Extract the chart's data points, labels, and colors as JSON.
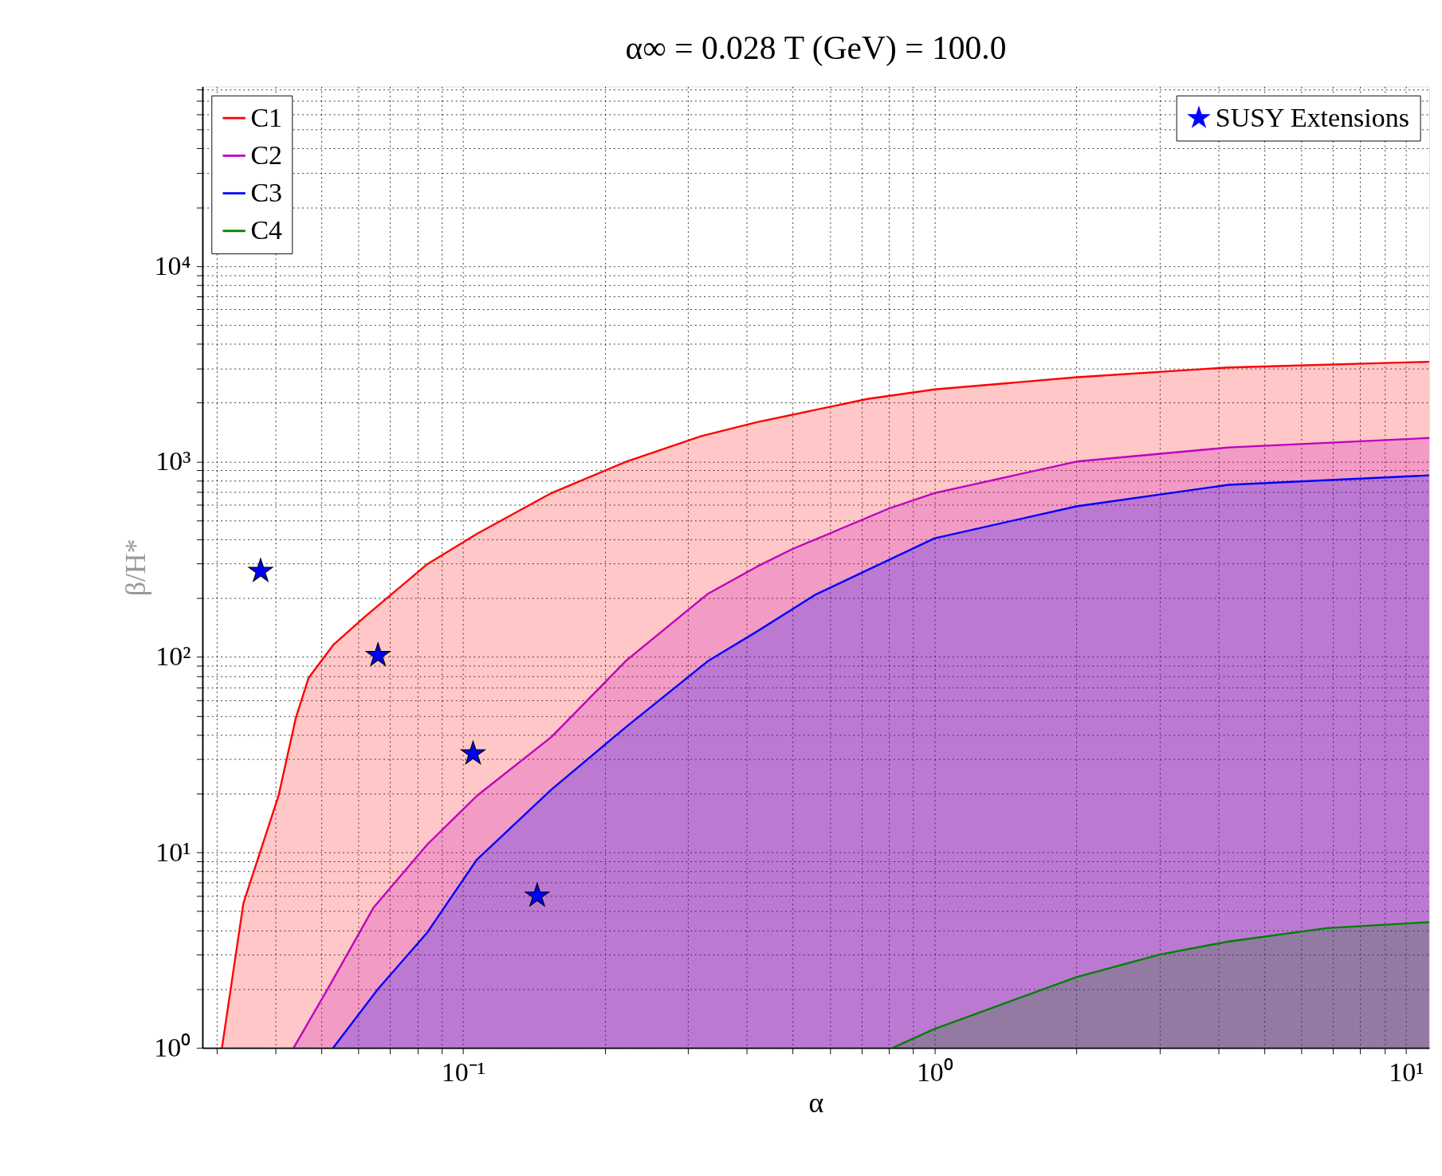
{
  "chart_data": {
    "type": "area",
    "title": "α∞ = 0.028  T (GeV) = 100.0",
    "xlabel": "α",
    "ylabel": "β/H*",
    "log": "xy",
    "grid": true,
    "legend": "top left",
    "xlim": [
      0.028,
      11.2
    ],
    "ylim": [
      1,
      83000
    ],
    "xticks": [
      {
        "value": 0.03,
        "label": null
      },
      {
        "value": 0.04,
        "label": null
      },
      {
        "value": 0.05,
        "label": null
      },
      {
        "value": 0.06,
        "label": null
      },
      {
        "value": 0.07,
        "label": null
      },
      {
        "value": 0.08,
        "label": null
      },
      {
        "value": 0.09,
        "label": null
      },
      {
        "value": 0.1,
        "label": "10⁻¹"
      },
      {
        "value": 0.2,
        "label": null
      },
      {
        "value": 0.3,
        "label": null
      },
      {
        "value": 0.4,
        "label": null
      },
      {
        "value": 0.5,
        "label": null
      },
      {
        "value": 0.6,
        "label": null
      },
      {
        "value": 0.7,
        "label": null
      },
      {
        "value": 0.8,
        "label": null
      },
      {
        "value": 0.9,
        "label": null
      },
      {
        "value": 1,
        "label": "10⁰"
      },
      {
        "value": 2,
        "label": null
      },
      {
        "value": 3,
        "label": null
      },
      {
        "value": 4,
        "label": null
      },
      {
        "value": 5,
        "label": null
      },
      {
        "value": 6,
        "label": null
      },
      {
        "value": 7,
        "label": null
      },
      {
        "value": 8,
        "label": null
      },
      {
        "value": 9,
        "label": null
      },
      {
        "value": 10,
        "label": "10¹"
      }
    ],
    "yticks": [
      {
        "value": 1,
        "label": "10⁰"
      },
      {
        "value": 2,
        "label": null
      },
      {
        "value": 3,
        "label": null
      },
      {
        "value": 4,
        "label": null
      },
      {
        "value": 5,
        "label": null
      },
      {
        "value": 6,
        "label": null
      },
      {
        "value": 7,
        "label": null
      },
      {
        "value": 8,
        "label": null
      },
      {
        "value": 9,
        "label": null
      },
      {
        "value": 10,
        "label": "10¹"
      },
      {
        "value": 20,
        "label": null
      },
      {
        "value": 30,
        "label": null
      },
      {
        "value": 40,
        "label": null
      },
      {
        "value": 50,
        "label": null
      },
      {
        "value": 60,
        "label": null
      },
      {
        "value": 70,
        "label": null
      },
      {
        "value": 80,
        "label": null
      },
      {
        "value": 90,
        "label": null
      },
      {
        "value": 100,
        "label": "10²"
      },
      {
        "value": 200,
        "label": null
      },
      {
        "value": 300,
        "label": null
      },
      {
        "value": 400,
        "label": null
      },
      {
        "value": 500,
        "label": null
      },
      {
        "value": 600,
        "label": null
      },
      {
        "value": 700,
        "label": null
      },
      {
        "value": 800,
        "label": null
      },
      {
        "value": 900,
        "label": null
      },
      {
        "value": 1000,
        "label": "10³"
      },
      {
        "value": 2000,
        "label": null
      },
      {
        "value": 3000,
        "label": null
      },
      {
        "value": 4000,
        "label": null
      },
      {
        "value": 5000,
        "label": null
      },
      {
        "value": 6000,
        "label": null
      },
      {
        "value": 7000,
        "label": null
      },
      {
        "value": 8000,
        "label": null
      },
      {
        "value": 9000,
        "label": null
      },
      {
        "value": 10000,
        "label": "10⁴"
      },
      {
        "value": 20000,
        "label": null
      },
      {
        "value": 30000,
        "label": null
      },
      {
        "value": 40000,
        "label": null
      },
      {
        "value": 50000,
        "label": null
      },
      {
        "value": 60000,
        "label": null
      },
      {
        "value": 70000,
        "label": null
      },
      {
        "value": 80000,
        "label": null
      }
    ],
    "series": [
      {
        "name": "C1",
        "color": "#ff0000",
        "x": [
          0.0308,
          0.0342,
          0.0406,
          0.0442,
          0.047,
          0.053,
          0.0614,
          0.084,
          0.107,
          0.154,
          0.222,
          0.32,
          0.42,
          0.72,
          1.0,
          2.0,
          4.2,
          11.2
        ],
        "values": [
          1,
          5.5,
          19.5,
          49,
          78,
          115,
          158,
          299,
          427,
          690,
          1000,
          1350,
          1590,
          2090,
          2340,
          2700,
          3030,
          3240
        ]
      },
      {
        "name": "C2",
        "color": "#bf00bf",
        "x": [
          0.0437,
          0.0516,
          0.0645,
          0.084,
          0.107,
          0.154,
          0.222,
          0.33,
          0.42,
          0.5,
          0.8,
          1.0,
          2.0,
          4.2,
          11.2
        ],
        "values": [
          1,
          2.0,
          5.2,
          11,
          19.5,
          39,
          96,
          210,
          290,
          357,
          575,
          690,
          1000,
          1180,
          1320
        ]
      },
      {
        "name": "C3",
        "color": "#0000ff",
        "x": [
          0.053,
          0.066,
          0.084,
          0.107,
          0.154,
          0.222,
          0.33,
          0.42,
          0.56,
          1.0,
          2.0,
          4.2,
          11.2
        ],
        "values": [
          1,
          2.0,
          3.9,
          9.2,
          21,
          44,
          95,
          135,
          209,
          405,
          590,
          760,
          850
        ]
      },
      {
        "name": "C4",
        "color": "#008000",
        "x": [
          0.815,
          1.0,
          2.0,
          3.0,
          4.2,
          6.8,
          11.2
        ],
        "values": [
          1,
          1.25,
          2.3,
          3.0,
          3.5,
          4.1,
          4.4
        ]
      },
      {
        "name": "SUSY Extensions",
        "type": "scatter",
        "color": "#0000ff",
        "marker": "star",
        "x": [
          0.0372,
          0.066,
          0.105,
          0.1436
        ],
        "values": [
          275,
          102,
          32,
          6.0
        ]
      }
    ]
  }
}
